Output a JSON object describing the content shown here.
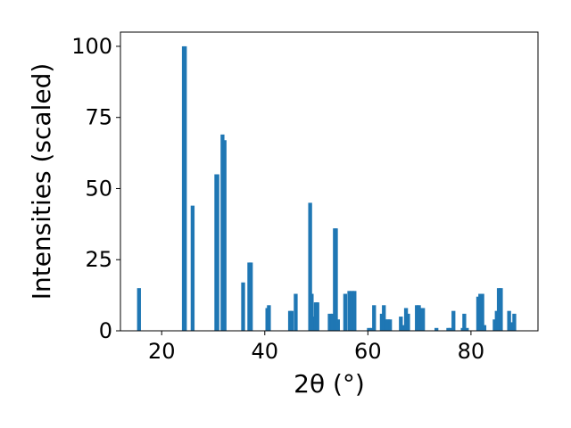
{
  "chart_data": {
    "type": "bar",
    "xlabel": "2θ (°)",
    "ylabel": "Intensities (scaled)",
    "xlim": [
      12,
      93
    ],
    "ylim": [
      0,
      105
    ],
    "xticks": [
      20,
      40,
      60,
      80
    ],
    "yticks": [
      0,
      25,
      50,
      75,
      100
    ],
    "grid": false,
    "color": "#1f77b4",
    "x": [
      15.6,
      24.3,
      24.5,
      26.0,
      30.6,
      30.8,
      31.8,
      32.2,
      35.8,
      37.0,
      37.3,
      40.5,
      40.8,
      44.9,
      45.2,
      46.0,
      48.8,
      49.1,
      49.5,
      49.9,
      50.2,
      52.6,
      53.2,
      53.6,
      53.8,
      54.2,
      55.6,
      56.4,
      56.9,
      57.4,
      60.2,
      60.8,
      61.2,
      62.7,
      63.1,
      63.5,
      63.9,
      64.3,
      66.4,
      67.0,
      67.4,
      67.8,
      69.5,
      69.9,
      70.4,
      70.7,
      73.3,
      75.6,
      76.0,
      76.6,
      78.4,
      78.7,
      79.2,
      81.4,
      81.8,
      82.2,
      82.6,
      84.6,
      85.0,
      85.4,
      85.8,
      87.4,
      87.8,
      88.4
    ],
    "values": [
      15,
      100,
      100,
      44,
      55,
      55,
      69,
      67,
      17,
      24,
      24,
      8,
      9,
      7,
      7,
      13,
      45,
      13,
      5,
      10,
      10,
      6,
      6,
      36,
      36,
      4,
      13,
      14,
      14,
      14,
      1,
      1,
      9,
      6,
      9,
      4,
      4,
      4,
      5,
      2,
      8,
      6,
      9,
      9,
      8,
      8,
      1,
      1,
      1,
      7,
      1,
      6,
      1,
      12,
      13,
      13,
      2,
      4,
      7,
      15,
      15,
      7,
      3,
      6
    ]
  }
}
